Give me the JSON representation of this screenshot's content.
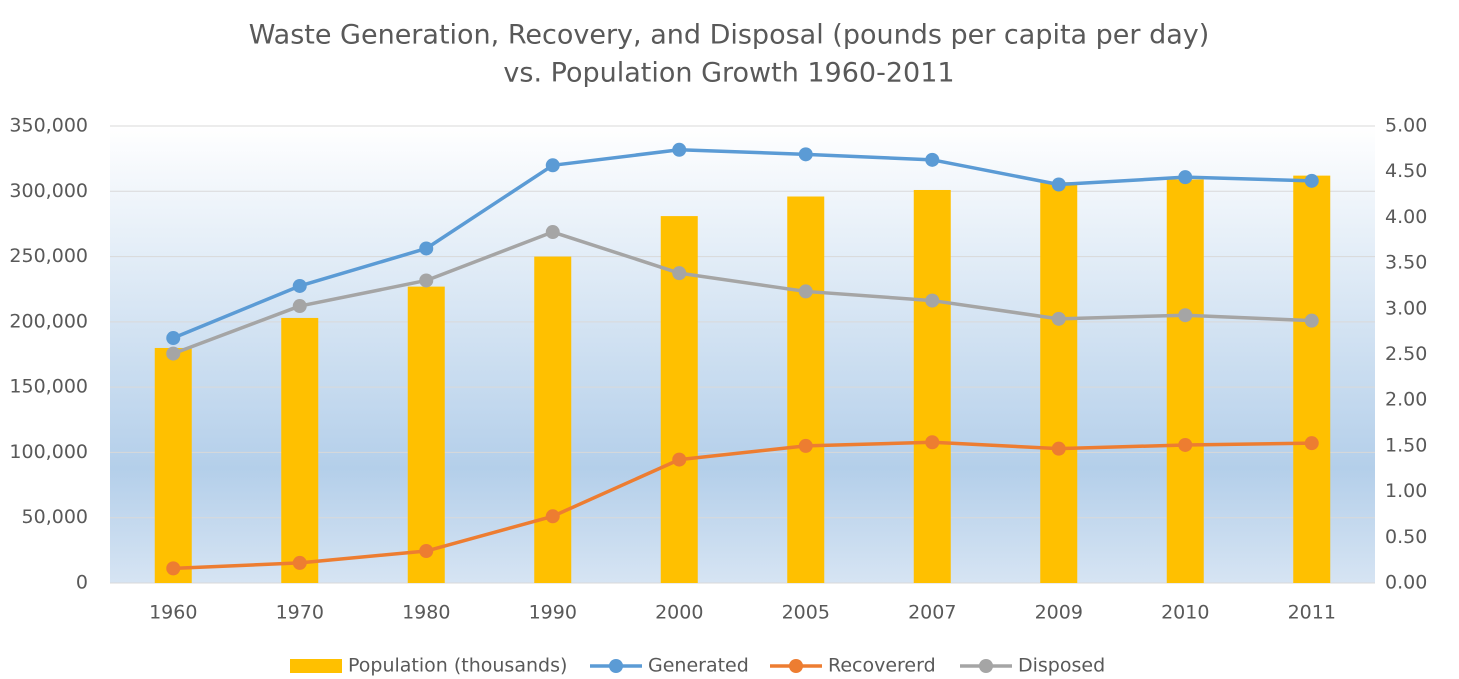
{
  "chart_data": {
    "type": "bar",
    "title": [
      "Waste Generation, Recovery, and Disposal (pounds per capita per day)",
      "vs. Population Growth 1960-2011"
    ],
    "categories": [
      "1960",
      "1970",
      "1980",
      "1990",
      "2000",
      "2005",
      "2007",
      "2009",
      "2010",
      "2011"
    ],
    "series": [
      {
        "name": "Population (thousands)",
        "type": "bar",
        "axis": "y",
        "color": "#ffc000",
        "values": [
          180000,
          203000,
          227000,
          250000,
          281000,
          296000,
          301000,
          307000,
          309000,
          312000
        ]
      },
      {
        "name": "Generated",
        "type": "line",
        "axis": "y2",
        "color": "#5b9bd5",
        "values": [
          2.68,
          3.25,
          3.66,
          4.57,
          4.74,
          4.69,
          4.63,
          4.36,
          4.44,
          4.4
        ]
      },
      {
        "name": "Recovererd",
        "type": "line",
        "axis": "y2",
        "color": "#ed7d31",
        "values": [
          0.16,
          0.22,
          0.35,
          0.73,
          1.35,
          1.5,
          1.54,
          1.47,
          1.51,
          1.53
        ]
      },
      {
        "name": "Disposed",
        "type": "line",
        "axis": "y2",
        "color": "#a5a5a5",
        "values": [
          2.51,
          3.03,
          3.31,
          3.84,
          3.39,
          3.19,
          3.09,
          2.89,
          2.93,
          2.87
        ]
      }
    ],
    "ylim": [
      0,
      350000
    ],
    "yticks": [
      0,
      {
        "value": 50000,
        "label": "50,000"
      },
      {
        "value": 100000,
        "label": "100,000"
      },
      {
        "value": 150000,
        "label": "150,000"
      },
      {
        "value": 200000,
        "label": "200,000"
      },
      {
        "value": 250000,
        "label": "250,000"
      },
      {
        "value": 300000,
        "label": "300,000"
      },
      {
        "value": 350000,
        "label": "350,000"
      }
    ],
    "y2lim": [
      0,
      5
    ],
    "y2ticks": [
      {
        "value": 0,
        "label": "0.00"
      },
      {
        "value": 0.5,
        "label": "0.50"
      },
      {
        "value": 1,
        "label": "1.00"
      },
      {
        "value": 1.5,
        "label": "1.50"
      },
      {
        "value": 2,
        "label": "2.00"
      },
      {
        "value": 2.5,
        "label": "2.50"
      },
      {
        "value": 3,
        "label": "3.00"
      },
      {
        "value": 3.5,
        "label": "3.50"
      },
      {
        "value": 4,
        "label": "4.00"
      },
      {
        "value": 4.5,
        "label": "4.50"
      },
      {
        "value": 5,
        "label": "5.00"
      }
    ],
    "grid": true,
    "legend": "bottom"
  }
}
